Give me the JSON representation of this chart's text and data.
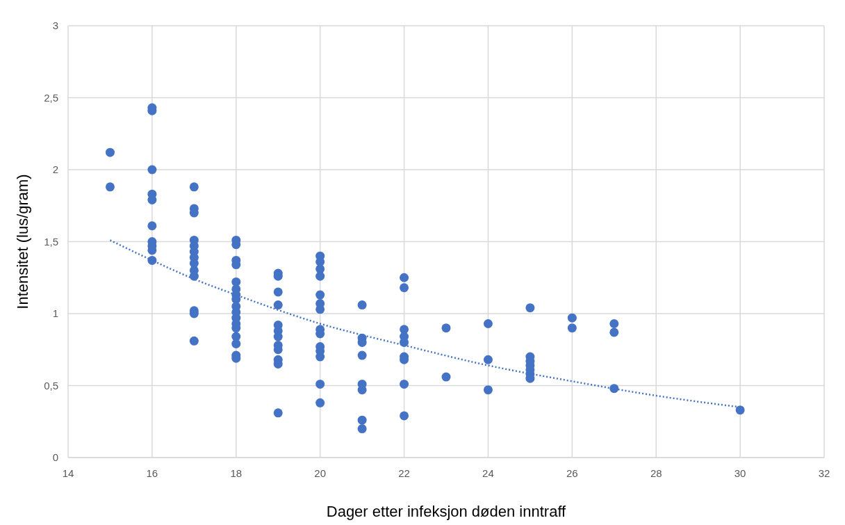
{
  "chart_data": {
    "type": "scatter",
    "xlabel": "Dager etter infeksjon døden inntraff",
    "ylabel": "Intensitet (lus/gram)",
    "xlim": [
      14,
      32
    ],
    "xticks": [
      14,
      16,
      18,
      20,
      22,
      24,
      26,
      28,
      30,
      32
    ],
    "ylim": [
      0,
      3
    ],
    "yticks": [
      0,
      {
        "value": 0.5,
        "label": "0,5"
      },
      1,
      {
        "value": 1.5,
        "label": "1,5"
      },
      2,
      {
        "value": 2.5,
        "label": "2,5"
      },
      3
    ],
    "grid": true,
    "series": [
      {
        "color": "#4472c4",
        "marker": "circle",
        "x": [
          15,
          15,
          16,
          16,
          16,
          16,
          16,
          16,
          16,
          16,
          16,
          16,
          17,
          17,
          17,
          17,
          17,
          17,
          17,
          17,
          17,
          17,
          17,
          17,
          17,
          18,
          18,
          18,
          18,
          18,
          18,
          18,
          18,
          18,
          18,
          18,
          18,
          18,
          18,
          18,
          18,
          18,
          19,
          19,
          19,
          19,
          19,
          19,
          19,
          19,
          19,
          19,
          19,
          19,
          20,
          20,
          20,
          20,
          20,
          20,
          20,
          20,
          20,
          20,
          20,
          20,
          20,
          20,
          21,
          21,
          21,
          21,
          21,
          21,
          21,
          21,
          22,
          22,
          22,
          22,
          22,
          22,
          22,
          22,
          22,
          23,
          23,
          24,
          24,
          24,
          25,
          25,
          25,
          25,
          25,
          25,
          25,
          26,
          26,
          27,
          27,
          27,
          30
        ],
        "values": [
          2.12,
          1.88,
          2.43,
          2.41,
          2.0,
          1.83,
          1.79,
          1.61,
          1.5,
          1.47,
          1.44,
          1.37,
          1.88,
          1.73,
          1.7,
          1.51,
          1.47,
          1.43,
          1.39,
          1.35,
          1.3,
          1.26,
          1.02,
          1.0,
          0.81,
          1.51,
          1.48,
          1.37,
          1.34,
          1.22,
          1.17,
          1.13,
          1.1,
          1.05,
          1.01,
          0.97,
          0.93,
          0.9,
          0.84,
          0.79,
          0.71,
          0.69,
          1.28,
          1.26,
          1.15,
          1.06,
          0.92,
          0.88,
          0.84,
          0.78,
          0.75,
          0.68,
          0.65,
          0.31,
          1.4,
          1.36,
          1.31,
          1.26,
          1.13,
          1.07,
          1.03,
          0.89,
          0.86,
          0.77,
          0.74,
          0.7,
          0.51,
          0.38,
          1.06,
          0.83,
          0.8,
          0.71,
          0.51,
          0.47,
          0.26,
          0.2,
          1.25,
          1.18,
          0.89,
          0.84,
          0.8,
          0.7,
          0.68,
          0.51,
          0.29,
          0.9,
          0.56,
          0.93,
          0.68,
          0.47,
          1.04,
          0.7,
          0.67,
          0.64,
          0.61,
          0.58,
          0.55,
          0.97,
          0.9,
          0.93,
          0.87,
          0.48,
          0.33
        ]
      },
      {
        "type": "line",
        "color": "#4472c4",
        "marker": "none",
        "line_style": "dotted",
        "x": [
          15,
          16,
          17,
          18,
          20,
          22,
          24,
          26,
          28,
          30
        ],
        "values": [
          1.51,
          1.37,
          1.24,
          1.13,
          0.93,
          0.78,
          0.64,
          0.53,
          0.43,
          0.35
        ]
      }
    ]
  }
}
